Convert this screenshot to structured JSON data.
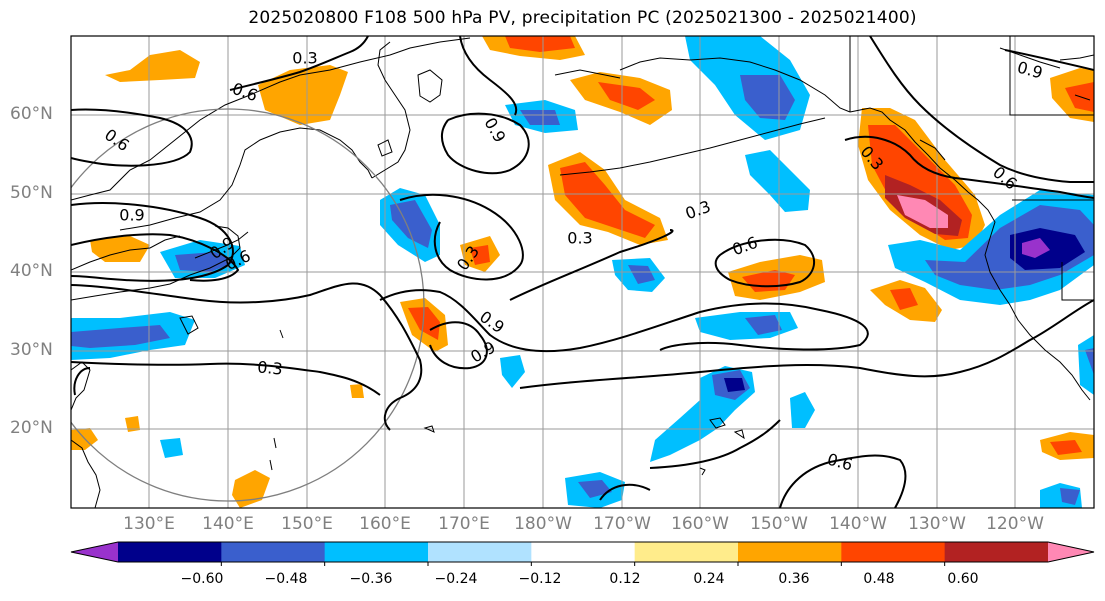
{
  "title": "2025020800 F108 500 hPa PV, precipitation PC (2025021300 - 2025021400)",
  "lat_labels": [
    "60°N",
    "50°N",
    "40°N",
    "30°N",
    "20°N"
  ],
  "lon_labels": [
    "130°E",
    "140°E",
    "150°E",
    "160°E",
    "170°E",
    "180°W",
    "170°W",
    "160°W",
    "150°W",
    "140°W",
    "130°W",
    "120°W"
  ],
  "contour_labels": [
    "0.6",
    "0.6",
    "0.9",
    "0.9",
    "0.3",
    "0.6",
    "0.3",
    "0.3",
    "0.9",
    "0.3",
    "0.6",
    "0.9",
    "0.3",
    "0.3",
    "0.6",
    "0.9",
    "0.9",
    "0.6"
  ],
  "colorbar": {
    "colors": [
      "#9932cc",
      "#00008b",
      "#3a5fcd",
      "#00bfff",
      "#b0e2ff",
      "#ffffff",
      "#ffec8b",
      "#ffa500",
      "#ff4500",
      "#b22222",
      "#ff88b4"
    ],
    "tick_labels": [
      "−0.60",
      "−0.48",
      "−0.36",
      "−0.24",
      "−0.12",
      "0.12",
      "0.24",
      "0.36",
      "0.48",
      "0.60"
    ]
  }
}
